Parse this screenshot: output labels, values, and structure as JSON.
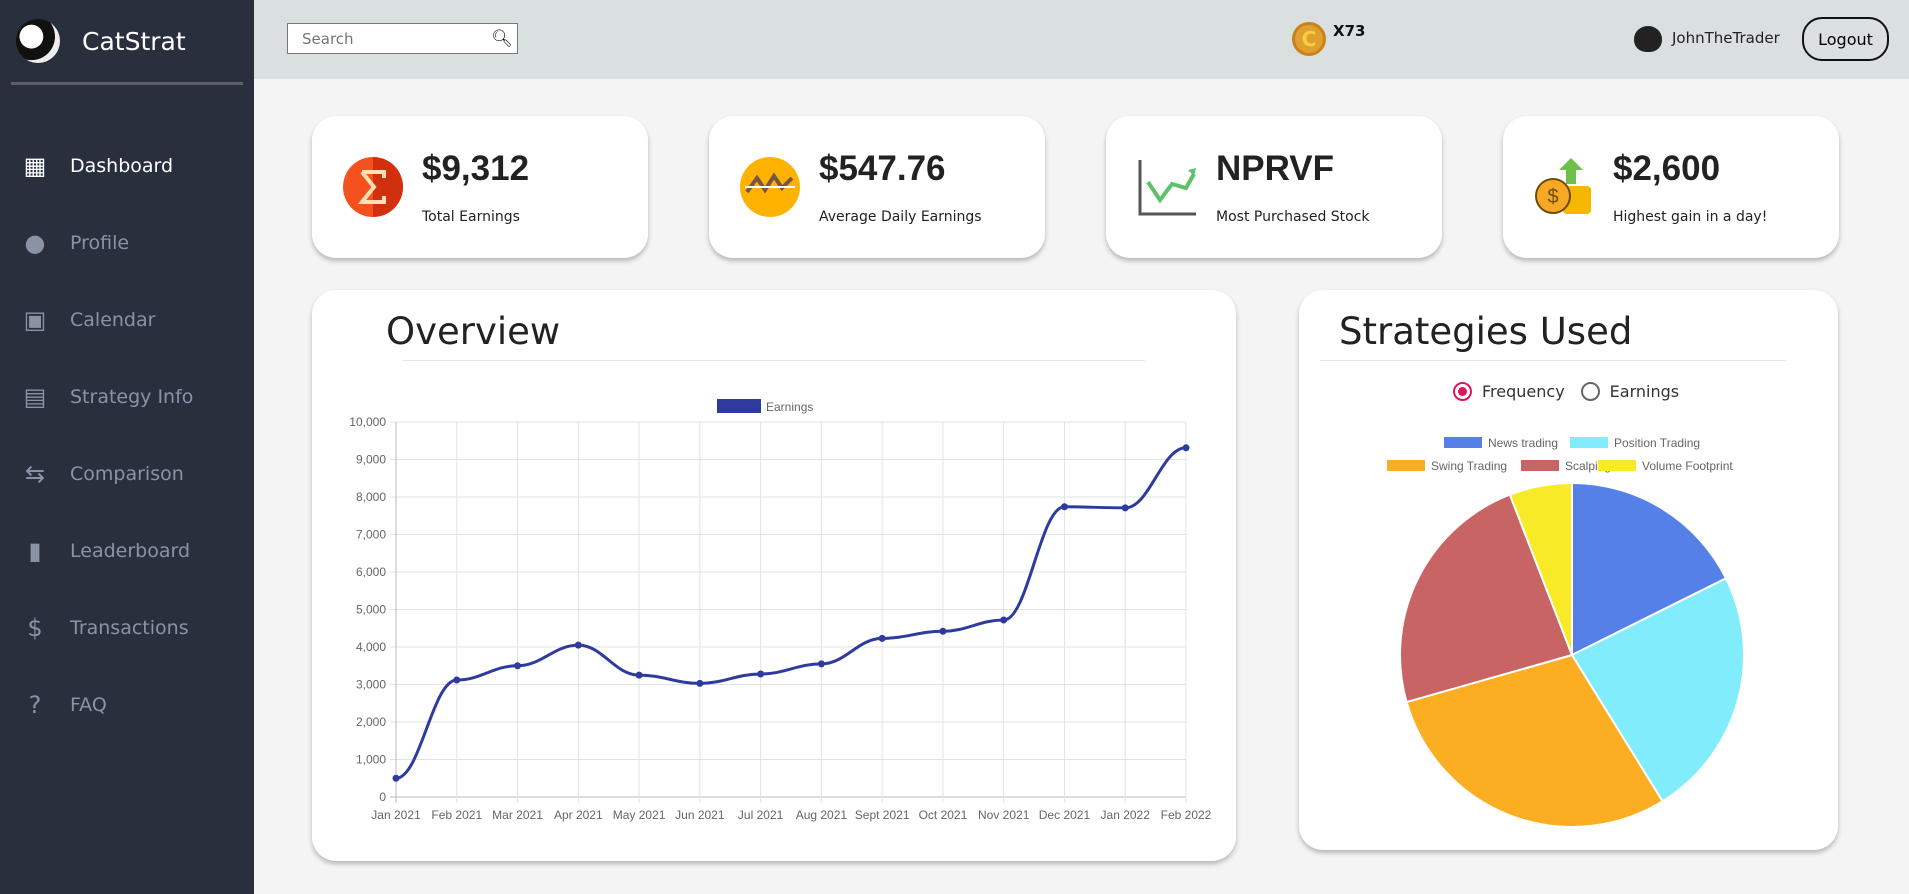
{
  "app": {
    "name": "CatStrat"
  },
  "sidebar": {
    "items": [
      {
        "label": "Dashboard",
        "icon": "dashboard-icon",
        "glyph": "▦"
      },
      {
        "label": "Profile",
        "icon": "account-circle-icon",
        "glyph": "●"
      },
      {
        "label": "Calendar",
        "icon": "calendar-icon",
        "glyph": "▣"
      },
      {
        "label": "Strategy Info",
        "icon": "clipboard-icon",
        "glyph": "▤"
      },
      {
        "label": "Comparison",
        "icon": "compare-arrows-icon",
        "glyph": "⇆"
      },
      {
        "label": "Leaderboard",
        "icon": "leaderboard-icon",
        "glyph": "▮"
      },
      {
        "label": "Transactions",
        "icon": "dollar-icon",
        "glyph": "$"
      },
      {
        "label": "FAQ",
        "icon": "help-icon",
        "glyph": "?"
      }
    ]
  },
  "header": {
    "search_placeholder": "Search",
    "coin_glyph": "C",
    "coins": "X73",
    "username": "JohnTheTrader",
    "logout": "Logout"
  },
  "stats": [
    {
      "value": "$9,312",
      "label": "Total Earnings"
    },
    {
      "value": "$547.76",
      "label": "Average Daily Earnings"
    },
    {
      "value": "NPRVF",
      "label": "Most Purchased Stock"
    },
    {
      "value": "$2,600",
      "label": "Highest gain in a day!"
    }
  ],
  "overview": {
    "title": "Overview"
  },
  "strategies": {
    "title": "Strategies Used",
    "options": [
      "Frequency",
      "Earnings"
    ],
    "selected": "Frequency"
  },
  "chart_data": [
    {
      "type": "line",
      "title": "Overview",
      "legend": [
        "Earnings"
      ],
      "legend_position": "top",
      "color": "#2e3b9e",
      "categories": [
        "Jan 2021",
        "Feb 2021",
        "Mar 2021",
        "Apr 2021",
        "May 2021",
        "Jun 2021",
        "Jul 2021",
        "Aug 2021",
        "Sept 2021",
        "Oct 2021",
        "Nov 2021",
        "Dec 2021",
        "Jan 2022",
        "Feb 2022"
      ],
      "values": [
        500,
        3120,
        3500,
        4050,
        3250,
        3030,
        3280,
        3550,
        4230,
        4420,
        4720,
        7740,
        7710,
        9312
      ],
      "ylim": [
        0,
        10000
      ],
      "yticks": [
        "0",
        "1,000",
        "2,000",
        "3,000",
        "4,000",
        "5,000",
        "6,000",
        "7,000",
        "8,000",
        "9,000",
        "10,000"
      ],
      "grid": true
    },
    {
      "type": "pie",
      "title": "Strategies Used",
      "legend_position": "top",
      "labels": [
        "News trading",
        "Position Trading",
        "Swing Trading",
        "Scalping",
        "Volume Footprint"
      ],
      "values": [
        6,
        8,
        10,
        8,
        2
      ],
      "colors": [
        "#5580e8",
        "#80ecfc",
        "#fbae22",
        "#c86464",
        "#f8ea26"
      ]
    }
  ]
}
